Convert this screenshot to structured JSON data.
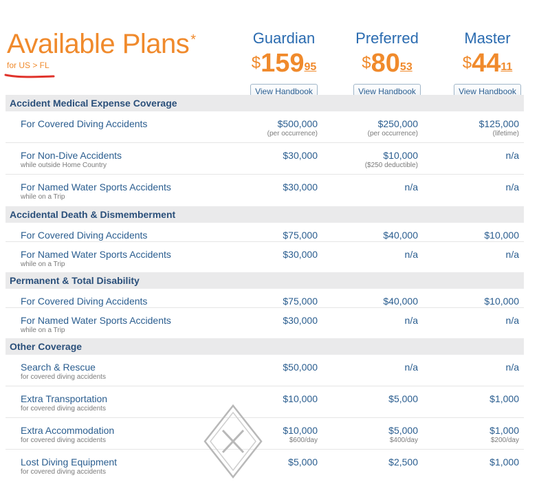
{
  "header": {
    "title": "Available Plans",
    "title_mark": "*",
    "location": "for US > FL"
  },
  "plans": [
    {
      "name": "Guardian",
      "currency": "$",
      "dollars": "159",
      "cents": "95",
      "button": "View Handbook"
    },
    {
      "name": "Preferred",
      "currency": "$",
      "dollars": "80",
      "cents": "53",
      "button": "View Handbook"
    },
    {
      "name": "Master",
      "currency": "$",
      "dollars": "44",
      "cents": "11",
      "button": "View Handbook"
    }
  ],
  "sections": [
    {
      "title": "Accident Medical Expense Coverage",
      "rows": [
        {
          "label": "For Covered Diving Accidents",
          "sub": "",
          "values": [
            {
              "v": "$500,000",
              "n": "(per occurrence)"
            },
            {
              "v": "$250,000",
              "n": "(per occurrence)"
            },
            {
              "v": "$125,000",
              "n": "(lifetime)"
            }
          ]
        },
        {
          "label": "For Non-Dive Accidents",
          "sub": "while outside Home Country",
          "values": [
            {
              "v": "$30,000",
              "n": ""
            },
            {
              "v": "$10,000",
              "n": "($250 deductible)"
            },
            {
              "v": "n/a",
              "n": ""
            }
          ]
        },
        {
          "label": "For Named Water Sports Accidents",
          "sub": "while on a Trip",
          "values": [
            {
              "v": "$30,000",
              "n": ""
            },
            {
              "v": "n/a",
              "n": ""
            },
            {
              "v": "n/a",
              "n": ""
            }
          ]
        }
      ]
    },
    {
      "title": "Accidental Death & Dismemberment",
      "rows": [
        {
          "label": "For Covered Diving Accidents",
          "sub": "",
          "values": [
            {
              "v": "$75,000",
              "n": ""
            },
            {
              "v": "$40,000",
              "n": ""
            },
            {
              "v": "$10,000",
              "n": ""
            }
          ]
        },
        {
          "label": "For Named Water Sports Accidents",
          "sub": "while on a Trip",
          "values": [
            {
              "v": "$30,000",
              "n": ""
            },
            {
              "v": "n/a",
              "n": ""
            },
            {
              "v": "n/a",
              "n": ""
            }
          ]
        }
      ]
    },
    {
      "title": "Permanent & Total Disability",
      "rows": [
        {
          "label": "For Covered Diving Accidents",
          "sub": "",
          "values": [
            {
              "v": "$75,000",
              "n": ""
            },
            {
              "v": "$40,000",
              "n": ""
            },
            {
              "v": "$10,000",
              "n": ""
            }
          ]
        },
        {
          "label": "For Named Water Sports Accidents",
          "sub": "while on a Trip",
          "values": [
            {
              "v": "$30,000",
              "n": ""
            },
            {
              "v": "n/a",
              "n": ""
            },
            {
              "v": "n/a",
              "n": ""
            }
          ]
        }
      ]
    },
    {
      "title": "Other Coverage",
      "rows": [
        {
          "label": "Search & Rescue",
          "sub": "for covered diving accidents",
          "values": [
            {
              "v": "$50,000",
              "n": ""
            },
            {
              "v": "n/a",
              "n": ""
            },
            {
              "v": "n/a",
              "n": ""
            }
          ]
        },
        {
          "label": "Extra Transportation",
          "sub": "for covered diving accidents",
          "values": [
            {
              "v": "$10,000",
              "n": ""
            },
            {
              "v": "$5,000",
              "n": ""
            },
            {
              "v": "$1,000",
              "n": ""
            }
          ]
        },
        {
          "label": "Extra Accommodation",
          "sub": "for covered diving accidents",
          "values": [
            {
              "v": "$10,000",
              "n": "$600/day"
            },
            {
              "v": "$5,000",
              "n": "$400/day"
            },
            {
              "v": "$1,000",
              "n": "$200/day"
            }
          ]
        },
        {
          "label": "Lost Diving Equipment",
          "sub": "for covered diving accidents",
          "values": [
            {
              "v": "$5,000",
              "n": ""
            },
            {
              "v": "$2,500",
              "n": ""
            },
            {
              "v": "$1,000",
              "n": ""
            }
          ]
        }
      ]
    }
  ],
  "colors": {
    "accent": "#f08a2c",
    "text": "#2a5d8f",
    "section_bg": "#eaeaeb",
    "annotation": "#e0332b"
  },
  "icons": {
    "watermark": "diamond-x-watermark-icon"
  }
}
